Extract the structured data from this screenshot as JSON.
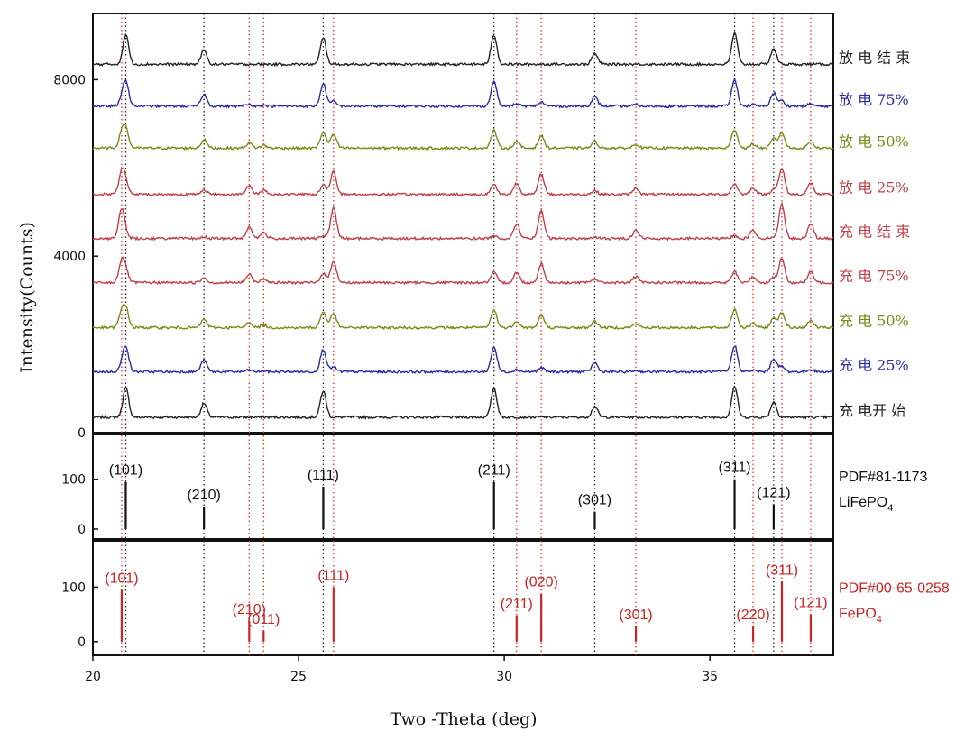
{
  "chart_data": {
    "type": "line",
    "xlabel": "Two -Theta (deg)",
    "ylabel": "Intensity(Counts)",
    "xlim": [
      20,
      38
    ],
    "x_ticks": [
      "20",
      "25",
      "30",
      "35"
    ],
    "x_tick_values": [
      20,
      25,
      30,
      35
    ],
    "panels": [
      {
        "id": "xrd",
        "ylim": [
          0,
          9500
        ],
        "y_ticks": [
          "0",
          "4000",
          "8000"
        ],
        "y_tick_values": [
          0,
          4000,
          8000
        ],
        "series": [
          {
            "name": "充 电开 始",
            "color": "#222222",
            "offset": 350,
            "li": 1.0,
            "fe": 0.0
          },
          {
            "name": "充 电 25%",
            "color": "#2a2aa8",
            "offset": 1380,
            "li": 0.85,
            "fe": 0.15
          },
          {
            "name": "充 电 50%",
            "color": "#7a8a18",
            "offset": 2380,
            "li": 0.6,
            "fe": 0.45
          },
          {
            "name": "充 电 75%",
            "color": "#c0404a",
            "offset": 3400,
            "li": 0.35,
            "fe": 0.7
          },
          {
            "name": "充 电 结 束",
            "color": "#c0404a",
            "offset": 4400,
            "li": 0.1,
            "fe": 1.0
          },
          {
            "name": "放 电 25%",
            "color": "#c0404a",
            "offset": 5400,
            "li": 0.35,
            "fe": 0.75
          },
          {
            "name": "放 电 50%",
            "color": "#7a8a18",
            "offset": 6450,
            "li": 0.6,
            "fe": 0.45
          },
          {
            "name": "放 电 75%",
            "color": "#2a2aa8",
            "offset": 7400,
            "li": 0.85,
            "fe": 0.15
          },
          {
            "name": "放 电 结 束",
            "color": "#222222",
            "offset": 8350,
            "li": 1.0,
            "fe": 0.0
          }
        ]
      },
      {
        "id": "lifepo4",
        "ylim": [
          -20,
          190
        ],
        "y_ticks": [
          "0",
          "100"
        ],
        "y_tick_values": [
          0,
          100
        ],
        "color": "#111111",
        "reference": "PDF#81-1173",
        "compound": "LiFePO",
        "compound_sub": "4",
        "peaks": [
          {
            "x": 20.8,
            "y": 95,
            "hkl": "(101)"
          },
          {
            "x": 22.7,
            "y": 45,
            "hkl": "(210)"
          },
          {
            "x": 25.6,
            "y": 85,
            "hkl": "(111)"
          },
          {
            "x": 29.75,
            "y": 95,
            "hkl": "(211)"
          },
          {
            "x": 32.2,
            "y": 35,
            "hkl": "(301)"
          },
          {
            "x": 35.6,
            "y": 100,
            "hkl": "(311)"
          },
          {
            "x": 36.55,
            "y": 50,
            "hkl": "(121)"
          }
        ]
      },
      {
        "id": "fepo4",
        "ylim": [
          -25,
          185
        ],
        "y_ticks": [
          "0",
          "100"
        ],
        "y_tick_values": [
          0,
          100
        ],
        "color": "#cc2222",
        "reference": "PDF#00-65-0258",
        "compound": "FePO",
        "compound_sub": "4",
        "peaks": [
          {
            "x": 20.7,
            "y": 95,
            "hkl": "(101)"
          },
          {
            "x": 23.8,
            "y": 38,
            "hkl": "(210)"
          },
          {
            "x": 24.15,
            "y": 20,
            "hkl": "(011)"
          },
          {
            "x": 25.85,
            "y": 100,
            "hkl": "(111)"
          },
          {
            "x": 30.3,
            "y": 48,
            "hkl": "(211)"
          },
          {
            "x": 30.9,
            "y": 88,
            "hkl": "(020)"
          },
          {
            "x": 33.2,
            "y": 28,
            "hkl": "(301)"
          },
          {
            "x": 36.05,
            "y": 28,
            "hkl": "(220)"
          },
          {
            "x": 36.75,
            "y": 110,
            "hkl": "(311)"
          },
          {
            "x": 37.45,
            "y": 50,
            "hkl": "(121)"
          }
        ]
      }
    ],
    "guide_lines": {
      "black_x": [
        20.8,
        22.7,
        25.6,
        29.75,
        32.2,
        35.6,
        36.55
      ],
      "red_x": [
        20.7,
        23.8,
        24.15,
        25.85,
        30.3,
        30.9,
        33.2,
        36.05,
        36.75,
        37.45
      ],
      "black_color": "#222222",
      "red_color": "#e03030"
    }
  }
}
